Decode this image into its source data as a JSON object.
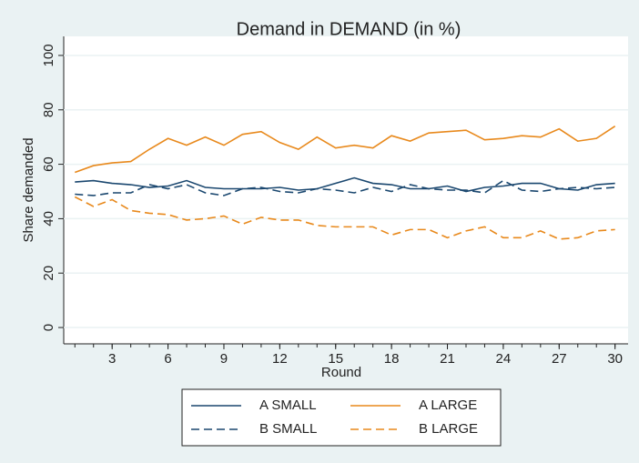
{
  "chart_data": {
    "type": "line",
    "title": "Demand in DEMAND (in %)",
    "xlabel": "Round",
    "ylabel": "Share demanded",
    "x": [
      1,
      2,
      3,
      4,
      5,
      6,
      7,
      8,
      9,
      10,
      11,
      12,
      13,
      14,
      15,
      16,
      17,
      18,
      19,
      20,
      21,
      22,
      23,
      24,
      25,
      26,
      27,
      28,
      29,
      30
    ],
    "series": [
      {
        "name": "A SMALL",
        "color": "#1a476f",
        "dash": "solid",
        "values": [
          53.5,
          54,
          53,
          52.5,
          51.5,
          52,
          54,
          51.5,
          51,
          51,
          51,
          51.5,
          50.5,
          51,
          53,
          55,
          53,
          52.5,
          51,
          51,
          52,
          50,
          51.5,
          52,
          53,
          53,
          51,
          50.5,
          52.5,
          53
        ]
      },
      {
        "name": "A LARGE",
        "color": "#e8891c",
        "dash": "solid",
        "values": [
          57,
          59.5,
          60.5,
          61,
          65.5,
          69.5,
          67,
          70,
          67,
          71,
          72,
          68,
          65.5,
          70,
          66,
          67,
          66,
          70.5,
          68.5,
          71.5,
          72,
          72.5,
          69,
          69.5,
          70.5,
          70,
          73,
          68.5,
          69.5,
          74
        ]
      },
      {
        "name": "B SMALL",
        "color": "#1a476f",
        "dash": "dashed",
        "values": [
          49,
          48.5,
          49.5,
          49.5,
          52.5,
          51,
          52.5,
          49.5,
          48.5,
          51,
          51.5,
          50,
          49.5,
          51,
          50.5,
          49.5,
          51.5,
          50,
          52.5,
          51,
          50.5,
          50.5,
          49.5,
          54,
          50.5,
          50,
          51,
          51.5,
          51,
          51.5
        ]
      },
      {
        "name": "B LARGE",
        "color": "#e8891c",
        "dash": "dashed",
        "values": [
          48,
          44.5,
          47,
          43,
          42,
          41.5,
          39.5,
          40,
          41,
          38,
          40.5,
          39.5,
          39.5,
          37.5,
          37,
          37,
          37,
          34,
          36,
          36,
          33,
          35.5,
          37,
          33,
          33,
          35.5,
          32.5,
          33,
          35.5,
          36
        ]
      }
    ],
    "xlim": [
      0.4,
      30.7
    ],
    "xticks": [
      3,
      6,
      9,
      12,
      15,
      18,
      21,
      24,
      27,
      30
    ],
    "ylim": [
      -6,
      107
    ],
    "yticks": [
      0,
      20,
      40,
      60,
      80,
      100
    ],
    "grid": true,
    "legend": "bottom"
  }
}
